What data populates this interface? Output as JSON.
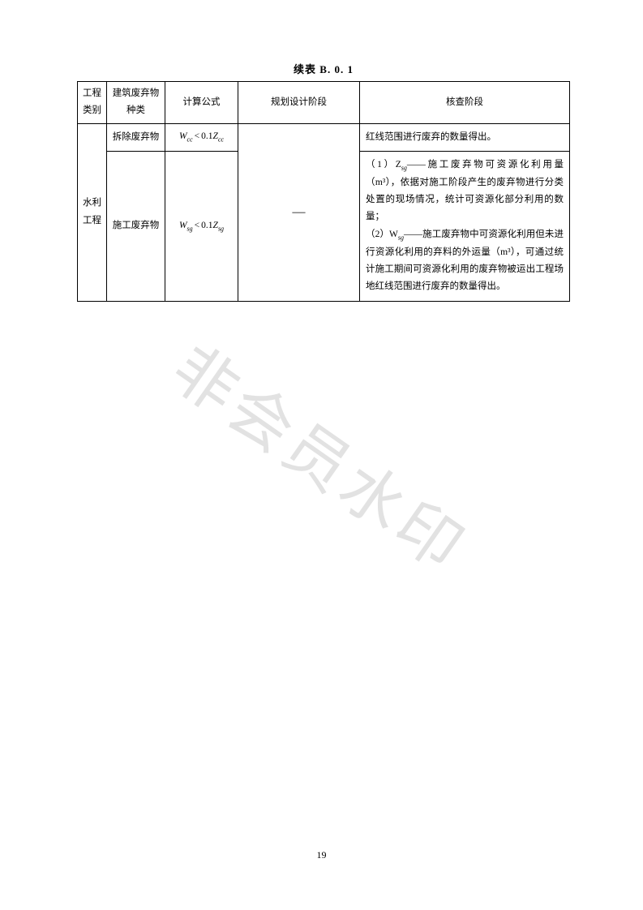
{
  "title": "续表 B. 0. 1",
  "headers": {
    "col1": "工程类别",
    "col2": "建筑废弃物种类",
    "col3": "计算公式",
    "col4": "规划设计阶段",
    "col5": "核查阶段"
  },
  "rows": {
    "category": "水利工程",
    "row1": {
      "type": "拆除废弃物",
      "formula_W": "W",
      "formula_W_sub": "cc",
      "formula_op": "<",
      "formula_coef": "0.1",
      "formula_Z": "Z",
      "formula_Z_sub": "cc",
      "col4": "",
      "col5": "红线范围进行废弃的数量得出。"
    },
    "row2": {
      "type": "施工废弃物",
      "formula_W": "W",
      "formula_W_sub": "sg",
      "formula_op": "<",
      "formula_coef": "0.1",
      "formula_Z": "Z",
      "formula_Z_sub": "sg",
      "col4": "—",
      "col5_p1": "（1）Z",
      "col5_p1_sub": "sg",
      "col5_p1_rest": "——施工废弃物可资源化利用量（m³），依据对施工阶段产生的废弃物进行分类处置的现场情况，统计可资源化部分利用的数量；",
      "col5_p2": "（2）W",
      "col5_p2_sub": "sg",
      "col5_p2_rest": "——施工废弃物中可资源化利用但未进行资源化利用的弃料的外运量（m³），可通过统计施工期间可资源化利用的废弃物被运出工程场地红线范围进行废弃的数量得出。"
    }
  },
  "watermark": "非会员水印",
  "page_number": "19"
}
